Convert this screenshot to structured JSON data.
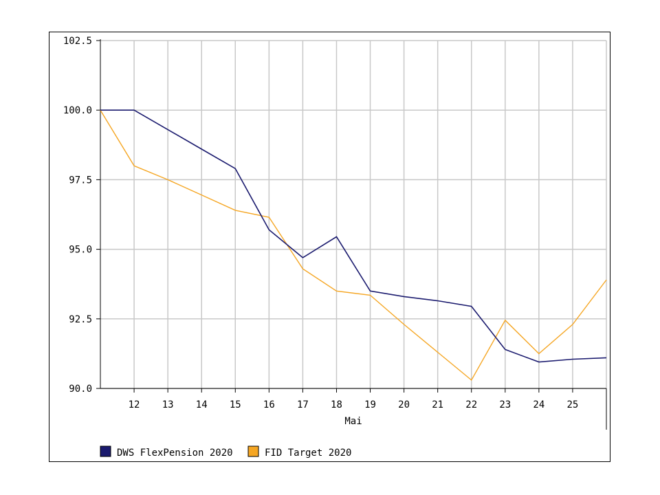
{
  "chart_data": {
    "type": "line",
    "x": [
      "11",
      "12",
      "13",
      "14",
      "15",
      "16",
      "17",
      "18",
      "19",
      "20",
      "21",
      "22",
      "23",
      "24",
      "25",
      "26"
    ],
    "x_tick_labels": [
      "12",
      "13",
      "14",
      "15",
      "16",
      "17",
      "18",
      "19",
      "20",
      "21",
      "22",
      "23",
      "24",
      "25"
    ],
    "xlabel": "Mai",
    "ylabel": "",
    "ylim": [
      90.0,
      102.5
    ],
    "y_ticks": [
      "90.0",
      "92.5",
      "95.0",
      "97.5",
      "100.0",
      "102.5"
    ],
    "grid": true,
    "legend_position": "bottom-left",
    "series": [
      {
        "name": "DWS FlexPension 2020",
        "color": "#1a1a6e",
        "values": [
          100.0,
          100.0,
          99.3,
          98.6,
          97.9,
          95.7,
          94.7,
          95.45,
          93.5,
          93.3,
          93.15,
          92.95,
          91.4,
          90.95,
          91.05,
          91.1
        ]
      },
      {
        "name": "FID Target 2020",
        "color": "#f5a623",
        "values": [
          100.0,
          98.0,
          97.5,
          96.95,
          96.4,
          96.15,
          94.3,
          93.5,
          93.35,
          92.3,
          91.3,
          90.3,
          92.45,
          91.25,
          92.3,
          93.9
        ]
      }
    ]
  }
}
